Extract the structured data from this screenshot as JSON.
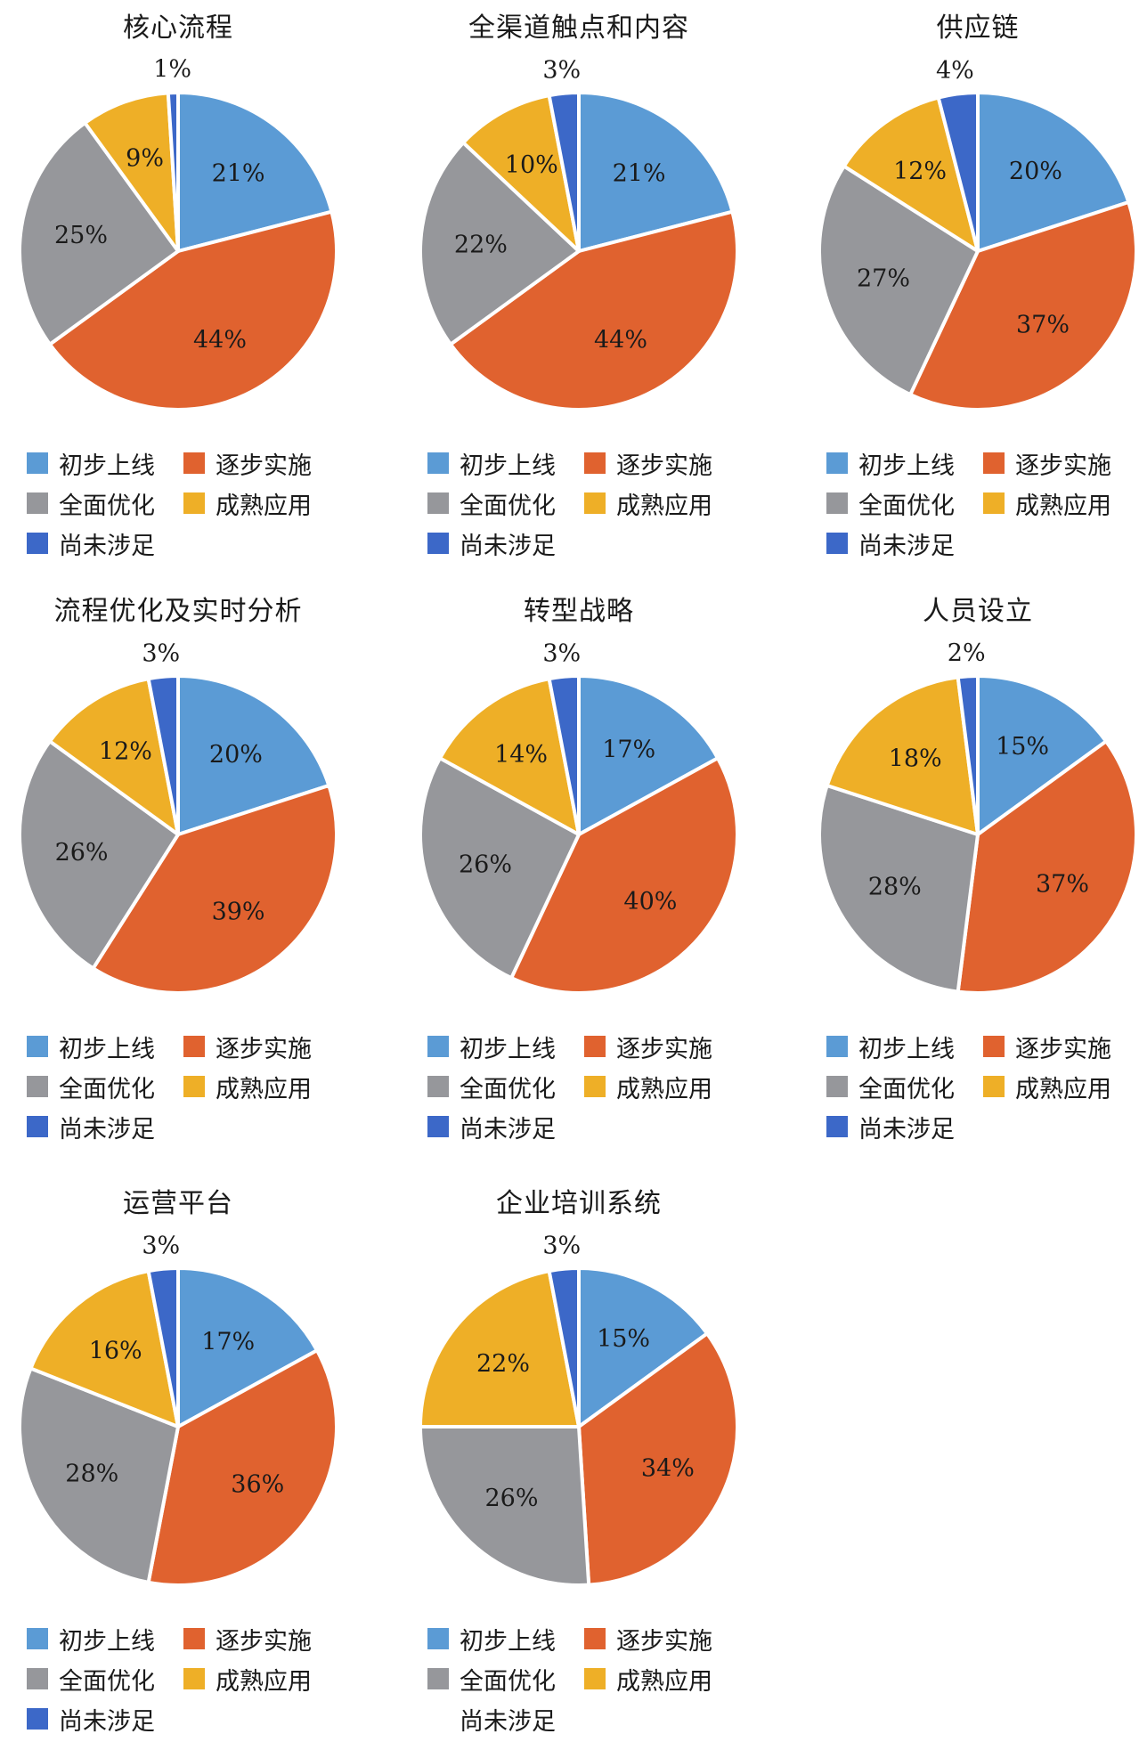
{
  "colors": {
    "初步上线": "#5b9bd5",
    "逐步实施": "#e0622f",
    "全面优化": "#96979b",
    "成熟应用": "#eeaf27",
    "尚未涉足": "#3c68c8"
  },
  "chart_data": [
    {
      "type": "pie",
      "title": "核心流程",
      "labels": [
        "初步上线",
        "逐步实施",
        "全面优化",
        "成熟应用",
        "尚未涉足"
      ],
      "values": [
        21,
        44,
        25,
        9,
        1
      ],
      "data_labels": [
        "21%",
        "44%",
        "25%",
        "9%",
        "1%"
      ],
      "legend": "bottom"
    },
    {
      "type": "pie",
      "title": "全渠道触点和内容",
      "labels": [
        "初步上线",
        "逐步实施",
        "全面优化",
        "成熟应用",
        "尚未涉足"
      ],
      "values": [
        21,
        44,
        22,
        10,
        3
      ],
      "data_labels": [
        "21%",
        "44%",
        "22%",
        "10%",
        "3%"
      ],
      "legend": "bottom"
    },
    {
      "type": "pie",
      "title": "供应链",
      "labels": [
        "初步上线",
        "逐步实施",
        "全面优化",
        "成熟应用",
        "尚未涉足"
      ],
      "values": [
        20,
        37,
        27,
        12,
        4
      ],
      "data_labels": [
        "20%",
        "37%",
        "27%",
        "12%",
        "4%"
      ],
      "legend": "bottom"
    },
    {
      "type": "pie",
      "title": "流程优化及实时分析",
      "labels": [
        "初步上线",
        "逐步实施",
        "全面优化",
        "成熟应用",
        "尚未涉足"
      ],
      "values": [
        20,
        39,
        26,
        12,
        3
      ],
      "data_labels": [
        "20%",
        "39%",
        "26%",
        "12%",
        "3%"
      ],
      "legend": "bottom"
    },
    {
      "type": "pie",
      "title": "转型战略",
      "labels": [
        "初步上线",
        "逐步实施",
        "全面优化",
        "成熟应用",
        "尚未涉足"
      ],
      "values": [
        17,
        40,
        26,
        14,
        3
      ],
      "data_labels": [
        "17%",
        "40%",
        "26%",
        "14%",
        "3%"
      ],
      "legend": "bottom"
    },
    {
      "type": "pie",
      "title": "人员设立",
      "labels": [
        "初步上线",
        "逐步实施",
        "全面优化",
        "成熟应用",
        "尚未涉足"
      ],
      "values": [
        15,
        37,
        28,
        18,
        2
      ],
      "data_labels": [
        "15%",
        "37%",
        "28%",
        "18%",
        "2%"
      ],
      "legend": "bottom"
    },
    {
      "type": "pie",
      "title": "运营平台",
      "labels": [
        "初步上线",
        "逐步实施",
        "全面优化",
        "成熟应用",
        "尚未涉足"
      ],
      "values": [
        17,
        36,
        28,
        16,
        3
      ],
      "data_labels": [
        "17%",
        "36%",
        "28%",
        "16%",
        "3%"
      ],
      "legend": "bottom"
    },
    {
      "type": "pie",
      "title": "企业培训系统",
      "labels": [
        "初步上线",
        "逐步实施",
        "全面优化",
        "成熟应用",
        "尚未涉足"
      ],
      "values": [
        15,
        34,
        26,
        22,
        3
      ],
      "data_labels": [
        "15%",
        "34%",
        "26%",
        "22%",
        "3%"
      ],
      "legend": "bottom",
      "legend_hidden_swatch": "尚未涉足"
    }
  ]
}
